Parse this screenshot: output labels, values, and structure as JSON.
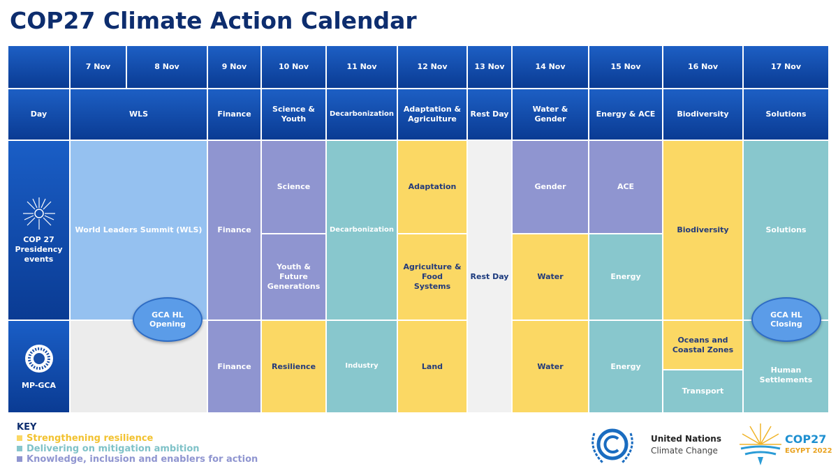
{
  "header": {
    "title": "COP27 Climate Action Calendar"
  },
  "calendar": {
    "dates": [
      "7 Nov",
      "8 Nov",
      "9 Nov",
      "10 Nov",
      "11 Nov",
      "12 Nov",
      "13 Nov",
      "14 Nov",
      "15 Nov",
      "16 Nov",
      "17 Nov"
    ],
    "themes": [
      "Day",
      "WLS",
      "Finance",
      "Science & Youth",
      "Decarbonization",
      "Adaptation & Agriculture",
      "Rest Day",
      "Water & Gender",
      "Energy & ACE",
      "Biodiversity",
      "Solutions"
    ],
    "rows": [
      {
        "label": "COP 27 Presidency events",
        "cells": [
          "World Leaders Summit (WLS)",
          "Finance",
          "Science",
          "Youth & Future Generations",
          "Decarbonization",
          "Adaptation",
          "Agriculture & Food Systems",
          "Gender",
          "Water",
          "ACE",
          "Energy",
          "Biodiversity",
          "Solutions"
        ]
      },
      {
        "label": "MP-GCA",
        "cells": [
          "Finance",
          "Resilience",
          "Industry",
          "Land",
          "Water",
          "Energy",
          "Oceans and Coastal Zones",
          "Transport",
          "Human Settlements"
        ]
      }
    ],
    "rest_day": "Rest Day",
    "events": [
      "GCA HL Opening",
      "GCA HL Closing"
    ]
  },
  "key": {
    "title": "KEY",
    "items": [
      "Strengthening resilience",
      "Delivering on mitigation ambition",
      "Knowledge, inclusion and enablers for action"
    ]
  },
  "logos": {
    "un": [
      "United Nations",
      "Climate Change"
    ],
    "cop": [
      "COP27",
      "EGYPT 2022"
    ]
  }
}
